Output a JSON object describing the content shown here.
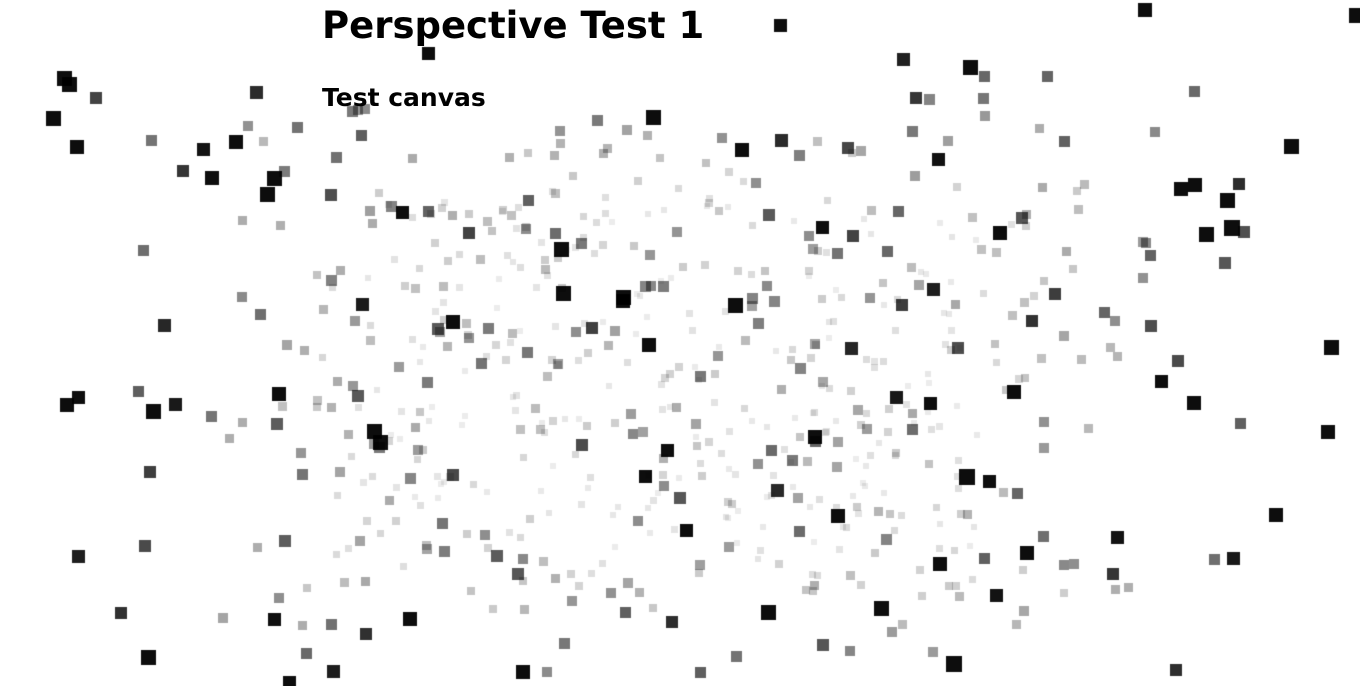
{
  "page": {
    "title": "Perspective Test 1",
    "canvas_label": "Test canvas"
  },
  "scene": {
    "point_color": "#000000",
    "point_count": 700,
    "shape": "square",
    "shading": "depth-based opacity"
  }
}
